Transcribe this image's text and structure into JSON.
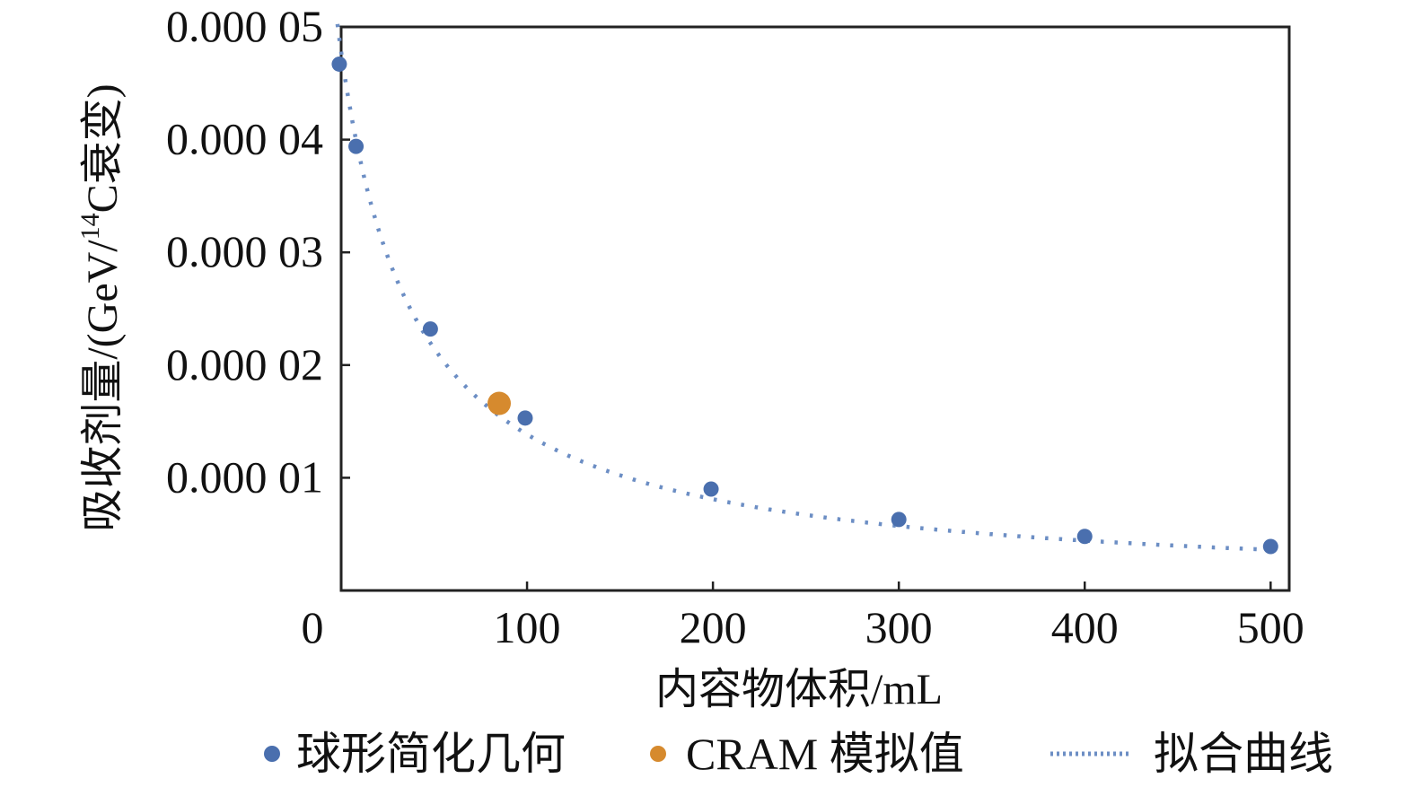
{
  "chart_data": {
    "type": "scatter",
    "title": "",
    "xlabel": "内容物体积/mL",
    "ylabel": {
      "prefix": "吸收剂量/(GeV/",
      "superscript": "14",
      "suffix": "C衰变)"
    },
    "xlim": [
      0,
      510
    ],
    "ylim": [
      0,
      5e-05
    ],
    "x_ticks": [
      0,
      100,
      200,
      300,
      400,
      500
    ],
    "x_tick_labels": [
      "0",
      "100",
      "200",
      "300",
      "400",
      "500"
    ],
    "y_ticks": [
      1e-05,
      2e-05,
      3e-05,
      4e-05,
      5e-05
    ],
    "y_tick_labels": [
      "0.000 01",
      "0.000 02",
      "0.000 03",
      "0.000 04",
      "0.000 05"
    ],
    "grid": false,
    "legend_position": "bottom",
    "series": [
      {
        "name": "球形简化几何",
        "kind": "markers",
        "color": "#4a6fae",
        "x": [
          -1,
          8,
          48,
          99,
          199,
          300,
          400,
          500
        ],
        "y": [
          4.67e-05,
          3.94e-05,
          2.32e-05,
          1.53e-05,
          9e-06,
          6.3e-06,
          4.8e-06,
          3.9e-06
        ]
      },
      {
        "name": "CRAM 模拟值",
        "kind": "markers",
        "color": "#d68a2e",
        "x": [
          85
        ],
        "y": [
          1.66e-05
        ]
      },
      {
        "name": "拟合曲线",
        "kind": "dotted-line",
        "color": "#6c8ec4",
        "model": "y = a / (x + b)",
        "a": 0.00195,
        "b": 40.8
      }
    ]
  }
}
